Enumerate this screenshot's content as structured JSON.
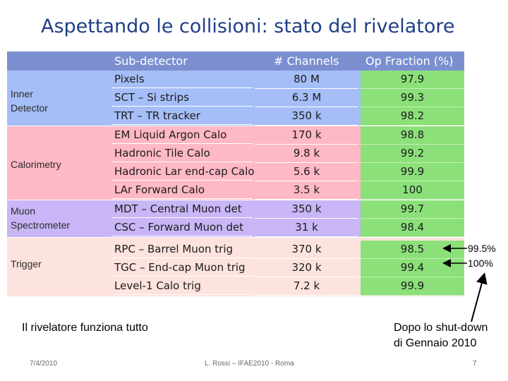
{
  "title": "Aspettando le collisioni: stato del rivelatore",
  "table": {
    "headers": [
      "Sub-detector",
      "# Channels",
      "Op Fraction (%)"
    ],
    "groups": [
      {
        "label": "Inner\nDetector",
        "rows": [
          {
            "name": "Pixels",
            "channels": "80 M",
            "op": "97.9"
          },
          {
            "name": "SCT – Si strips",
            "channels": "6.3 M",
            "op": "99.3"
          },
          {
            "name": "TRT – TR tracker",
            "channels": "350 k",
            "op": "98.2"
          }
        ]
      },
      {
        "label": "Calorimetry",
        "rows": [
          {
            "name": "EM Liquid Argon Calo",
            "channels": "170 k",
            "op": "98.8"
          },
          {
            "name": "Hadronic Tile Calo",
            "channels": "9.8 k",
            "op": "99.2"
          },
          {
            "name": "Hadronic Lar end-cap Calo",
            "channels": "5.6 k",
            "op": "99.9"
          },
          {
            "name": "LAr Forward Calo",
            "channels": "3.5 k",
            "op": "100"
          }
        ]
      },
      {
        "label": "Muon\nSpectrometer",
        "rows": [
          {
            "name": "MDT – Central Muon det",
            "channels": "350 k",
            "op": "99.7"
          },
          {
            "name": "CSC – Forward Muon det",
            "channels": "31 k",
            "op": "98.4"
          }
        ]
      },
      {
        "label": "Trigger",
        "rows": [
          {
            "name": "RPC – Barrel Muon trig",
            "channels": "370 k",
            "op": "98.5"
          },
          {
            "name": "TGC – End-cap Muon trig",
            "channels": "320 k",
            "op": "99.4"
          },
          {
            "name": "Level-1 Calo trig",
            "channels": "7.2 k",
            "op": "99.9"
          }
        ]
      }
    ]
  },
  "annotations": {
    "rpc_update": "99.5%",
    "tgc_update": "100%",
    "left_note": "Il rivelatore funziona tutto",
    "right_note_1": "Dopo lo shut-down",
    "right_note_2": "di Gennaio 2010"
  },
  "footer": {
    "date": "7/4/2010",
    "center": "L. Rossi – IFAE2010 - Roma",
    "page": "7"
  },
  "colors": {
    "title": "#1f3f86",
    "header": "#7b8fd0",
    "inner_detector": "#a6bef7",
    "calorimetry": "#ffb8c6",
    "muon": "#c9b6f6",
    "trigger": "#fde3de",
    "op_fraction": "#8ce07a"
  }
}
